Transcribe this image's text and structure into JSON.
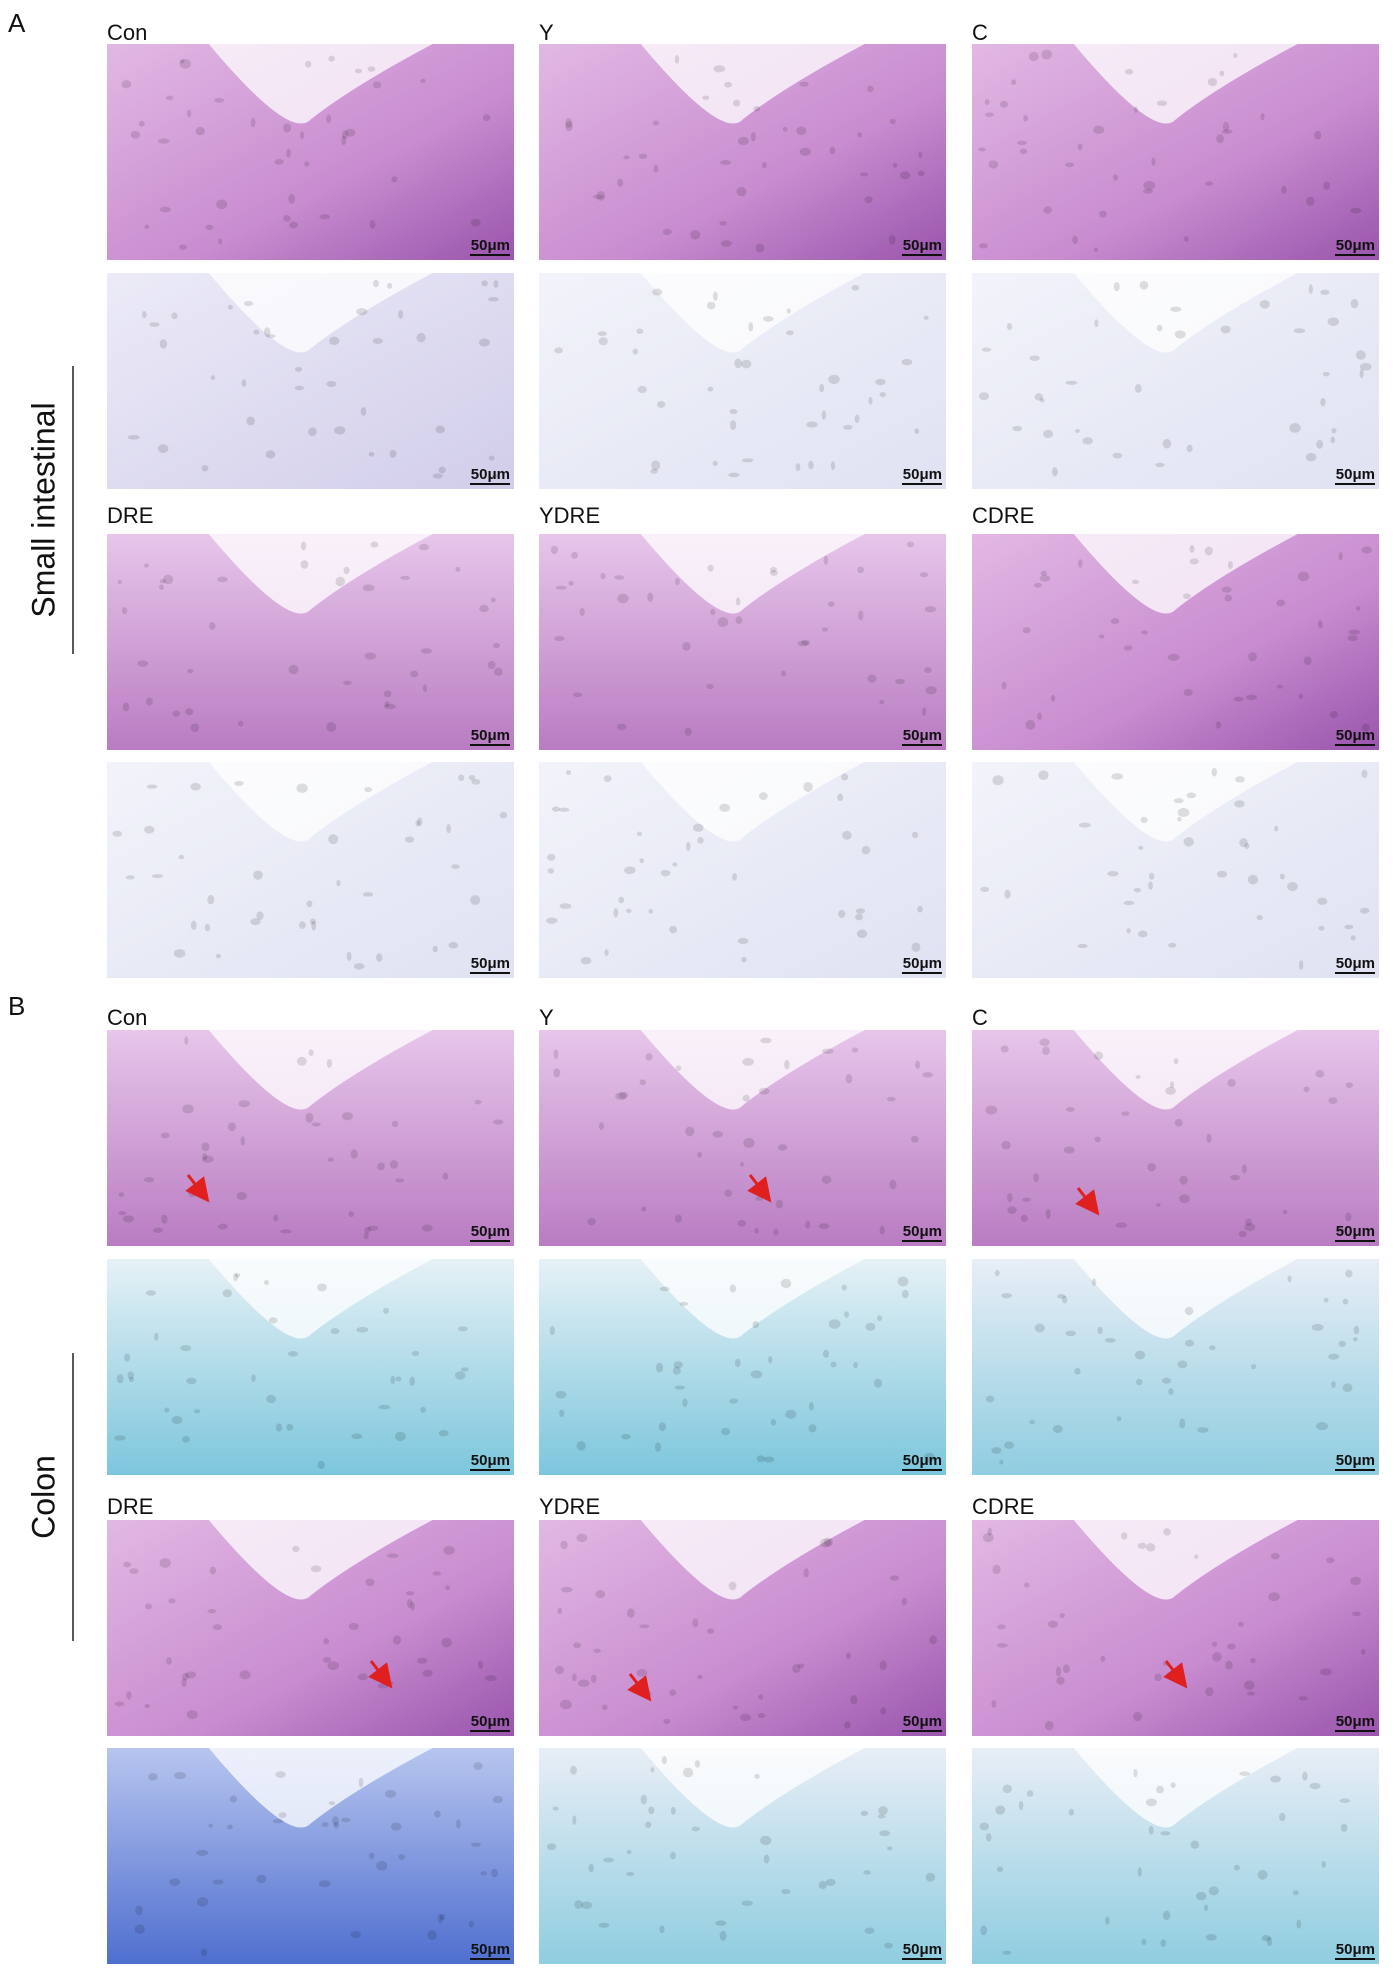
{
  "figure": {
    "panels": [
      {
        "label": "A",
        "tissue": "Small intestinal",
        "groups": [
          [
            "Con",
            "Y",
            "C"
          ],
          [
            "DRE",
            "YDRE",
            "CDRE"
          ]
        ],
        "scale_bar": "50μm"
      },
      {
        "label": "B",
        "tissue": "Colon",
        "groups": [
          [
            "Con",
            "Y",
            "C"
          ],
          [
            "DRE",
            "YDRE",
            "CDRE"
          ]
        ],
        "scale_bar": "50μm"
      }
    ]
  }
}
